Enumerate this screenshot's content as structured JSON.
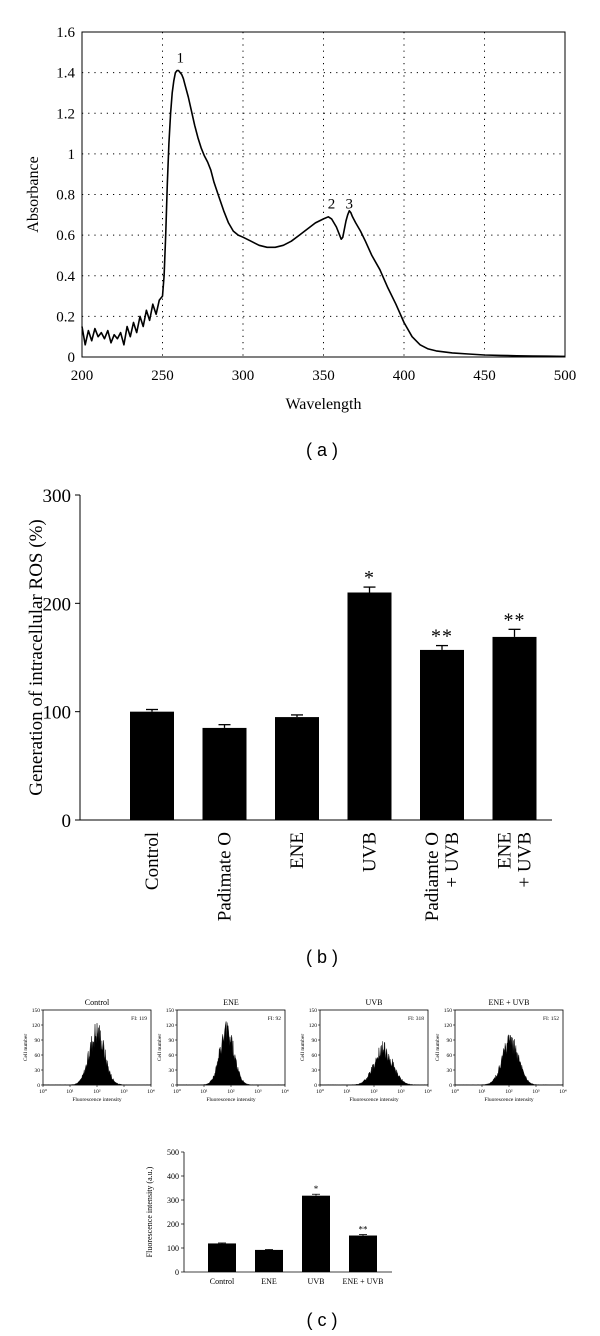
{
  "panel_labels": {
    "a": "( a )",
    "b": "( b )",
    "c": "( c )"
  },
  "chart_data": [
    {
      "id": "a",
      "type": "line",
      "title": "",
      "xlabel": "Wavelength",
      "ylabel": "Absorbance",
      "xlim": [
        200,
        500
      ],
      "ylim": [
        0,
        1.6
      ],
      "xticks": [
        200,
        250,
        300,
        350,
        400,
        450,
        500
      ],
      "yticks": [
        0,
        0.2,
        0.4,
        0.6,
        0.8,
        1,
        1.2,
        1.4,
        1.6
      ],
      "xtick_labels": [
        "200",
        "250",
        "300",
        "350",
        "400",
        "450",
        "500"
      ],
      "ytick_labels": [
        "0",
        "0.2",
        "0.4",
        "0.6",
        "0.8",
        "1",
        "1.2",
        "1.4",
        "1.6"
      ],
      "grid": "dotted",
      "series": [
        {
          "x": [
            200,
            202,
            204,
            206,
            208,
            210,
            212,
            214,
            216,
            218,
            220,
            222,
            224,
            226,
            228,
            230,
            232,
            234,
            236,
            238,
            240,
            242,
            244,
            246,
            248,
            250,
            251,
            252,
            253,
            254,
            255,
            256,
            257,
            258,
            259,
            260,
            261,
            262,
            263,
            264,
            266,
            268,
            270,
            272,
            274,
            276,
            278,
            280,
            282,
            285,
            288,
            291,
            294,
            297,
            300,
            305,
            310,
            315,
            320,
            325,
            330,
            335,
            340,
            345,
            350,
            353,
            355,
            358,
            360,
            361,
            362,
            363,
            364,
            365,
            366,
            367,
            368,
            370,
            373,
            376,
            380,
            385,
            390,
            395,
            400,
            405,
            410,
            415,
            420,
            430,
            440,
            450,
            460,
            470,
            480,
            490,
            500
          ],
          "y": [
            0.15,
            0.06,
            0.13,
            0.08,
            0.14,
            0.1,
            0.12,
            0.09,
            0.13,
            0.07,
            0.11,
            0.09,
            0.12,
            0.06,
            0.15,
            0.1,
            0.17,
            0.12,
            0.2,
            0.15,
            0.23,
            0.18,
            0.26,
            0.21,
            0.28,
            0.3,
            0.4,
            0.6,
            0.85,
            1.05,
            1.2,
            1.3,
            1.36,
            1.4,
            1.41,
            1.41,
            1.4,
            1.39,
            1.37,
            1.34,
            1.28,
            1.21,
            1.14,
            1.08,
            1.03,
            0.99,
            0.96,
            0.92,
            0.86,
            0.79,
            0.72,
            0.66,
            0.62,
            0.6,
            0.59,
            0.57,
            0.55,
            0.54,
            0.54,
            0.55,
            0.57,
            0.6,
            0.63,
            0.66,
            0.68,
            0.69,
            0.68,
            0.64,
            0.6,
            0.58,
            0.59,
            0.63,
            0.67,
            0.7,
            0.72,
            0.71,
            0.69,
            0.66,
            0.62,
            0.57,
            0.5,
            0.43,
            0.34,
            0.26,
            0.17,
            0.1,
            0.06,
            0.04,
            0.03,
            0.02,
            0.015,
            0.01,
            0.008,
            0.006,
            0.005,
            0.004,
            0.003
          ]
        }
      ],
      "annotations": [
        {
          "text": "1",
          "x": 261,
          "y": 1.45
        },
        {
          "text": "2",
          "x": 355,
          "y": 0.73
        },
        {
          "text": "3",
          "x": 366,
          "y": 0.73
        }
      ]
    },
    {
      "id": "b",
      "type": "bar",
      "title": "",
      "ylabel": "Generation of intracellular ROS (%)",
      "ylim": [
        0,
        300
      ],
      "yticks": [
        0,
        100,
        200,
        300
      ],
      "ytick_labels": [
        "0",
        "100",
        "200",
        "300"
      ],
      "categories": [
        [
          "Control"
        ],
        [
          "Padimate O"
        ],
        [
          "ENE"
        ],
        [
          "UVB"
        ],
        [
          "Padiamte O",
          "+ UVB"
        ],
        [
          "ENE",
          "+ UVB"
        ]
      ],
      "values": [
        100,
        85,
        95,
        210,
        157,
        169
      ],
      "errors": [
        2,
        3,
        2,
        5,
        4,
        7
      ],
      "significance": [
        "",
        "",
        "",
        "*",
        "**",
        "**"
      ]
    },
    {
      "id": "c_histograms",
      "type": "histogram",
      "xlabel": "Fluorescence intensity",
      "ylabel": "Cell number",
      "ylim": [
        0,
        150
      ],
      "yticks": [
        0,
        30,
        60,
        90,
        120,
        150
      ],
      "ytick_labels": [
        "0",
        "30",
        "60",
        "90",
        "120",
        "150"
      ],
      "xticks_log": [
        "10⁰",
        "10¹",
        "10²",
        "10³",
        "10⁴"
      ],
      "panels": [
        {
          "title": "Control",
          "fi_label": "FI: 119",
          "peak_decade": 2.0,
          "peak_height": 110,
          "width": 0.28
        },
        {
          "title": "ENE",
          "fi_label": "FI: 92",
          "peak_decade": 1.85,
          "peak_height": 108,
          "width": 0.26
        },
        {
          "title": "UVB",
          "fi_label": "FI: 318",
          "peak_decade": 2.35,
          "peak_height": 72,
          "width": 0.34
        },
        {
          "title": "ENE + UVB",
          "fi_label": "FI: 152",
          "peak_decade": 2.05,
          "peak_height": 88,
          "width": 0.3
        }
      ]
    },
    {
      "id": "c_bars",
      "type": "bar",
      "ylabel": "Fluorescence intensity (a.u.)",
      "ylim": [
        0,
        500
      ],
      "yticks": [
        0,
        100,
        200,
        300,
        400,
        500
      ],
      "ytick_labels": [
        "0",
        "100",
        "200",
        "300",
        "400",
        "500"
      ],
      "categories": [
        "Control",
        "ENE",
        "UVB",
        "ENE + UVB"
      ],
      "values": [
        119,
        92,
        318,
        152
      ],
      "errors": [
        2,
        2,
        6,
        4
      ],
      "significance": [
        "",
        "",
        "*",
        "**"
      ]
    }
  ]
}
